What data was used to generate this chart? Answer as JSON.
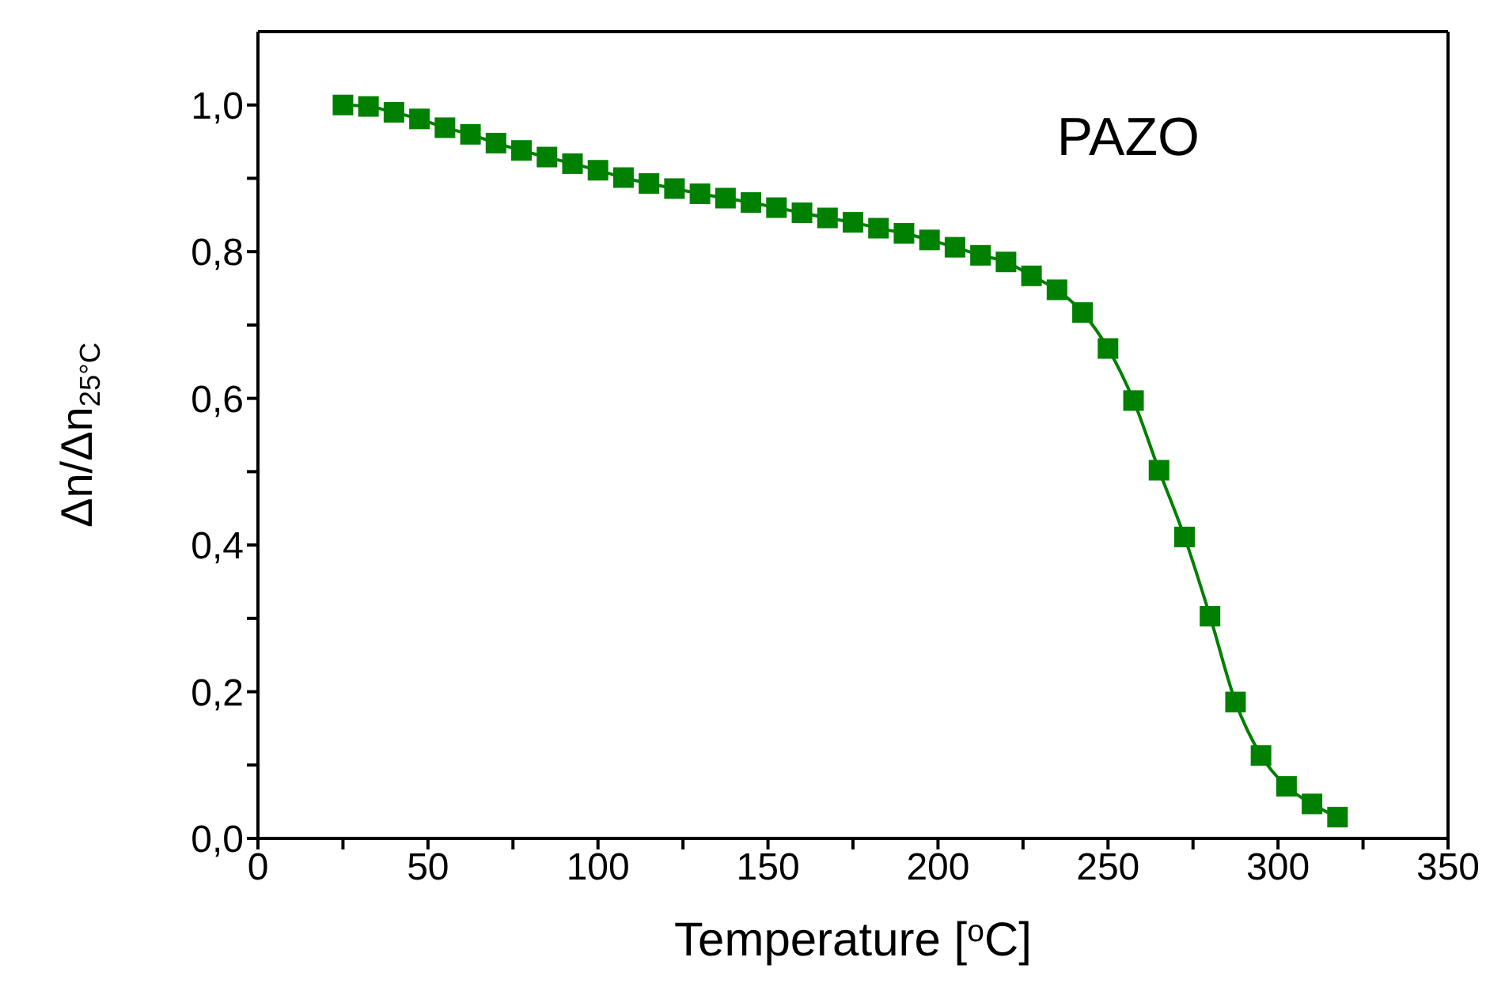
{
  "chart_data": {
    "type": "line",
    "xlabel": "Temperature [$^{o}$C]",
    "ylabel": "Δn/Δn$_{25°C}$",
    "marker": "square",
    "x": [
      25,
      32.5,
      40,
      47.5,
      55,
      62.5,
      70,
      77.5,
      85,
      92.5,
      100,
      107.5,
      115,
      122.5,
      130,
      137.5,
      145,
      152.5,
      160,
      167.5,
      175,
      182.5,
      190,
      197.5,
      205,
      212.5,
      220,
      227.5,
      235,
      242.5,
      250,
      257.5,
      265,
      272.5,
      280,
      287.5,
      295,
      302.5,
      310,
      317.5
    ],
    "series": [
      {
        "name": "PAZO",
        "color": "#008000",
        "values": [
          1.0,
          0.998,
          0.99,
          0.981,
          0.969,
          0.96,
          0.948,
          0.938,
          0.929,
          0.92,
          0.911,
          0.901,
          0.893,
          0.886,
          0.879,
          0.873,
          0.867,
          0.86,
          0.853,
          0.846,
          0.84,
          0.832,
          0.825,
          0.816,
          0.806,
          0.795,
          0.786,
          0.767,
          0.748,
          0.717,
          0.668,
          0.597,
          0.502,
          0.411,
          0.303,
          0.186,
          0.113,
          0.071,
          0.047,
          0.029
        ]
      }
    ],
    "xlim": [
      0,
      350
    ],
    "xticks": [
      0,
      {
        "value": 25,
        "label": null
      },
      50,
      {
        "value": 75,
        "label": null
      },
      100,
      {
        "value": 125,
        "label": null
      },
      150,
      {
        "value": 175,
        "label": null
      },
      200,
      {
        "value": 225,
        "label": null
      },
      250,
      {
        "value": 275,
        "label": null
      },
      300,
      {
        "value": 325,
        "label": null
      },
      350
    ],
    "ylim": [
      0,
      1.1
    ],
    "yticks": [
      {
        "value": 0,
        "label": "0,0"
      },
      {
        "value": 0.1,
        "label": null
      },
      {
        "value": 0.2,
        "label": "0,2"
      },
      {
        "value": 0.3,
        "label": null
      },
      {
        "value": 0.4,
        "label": "0,4"
      },
      {
        "value": 0.5,
        "label": null
      },
      {
        "value": 0.6,
        "label": "0,6"
      },
      {
        "value": 0.7,
        "label": null
      },
      {
        "value": 0.8,
        "label": "0,8"
      },
      {
        "value": 0.9,
        "label": null
      },
      {
        "value": 1.0,
        "label": "1,0"
      }
    ]
  }
}
